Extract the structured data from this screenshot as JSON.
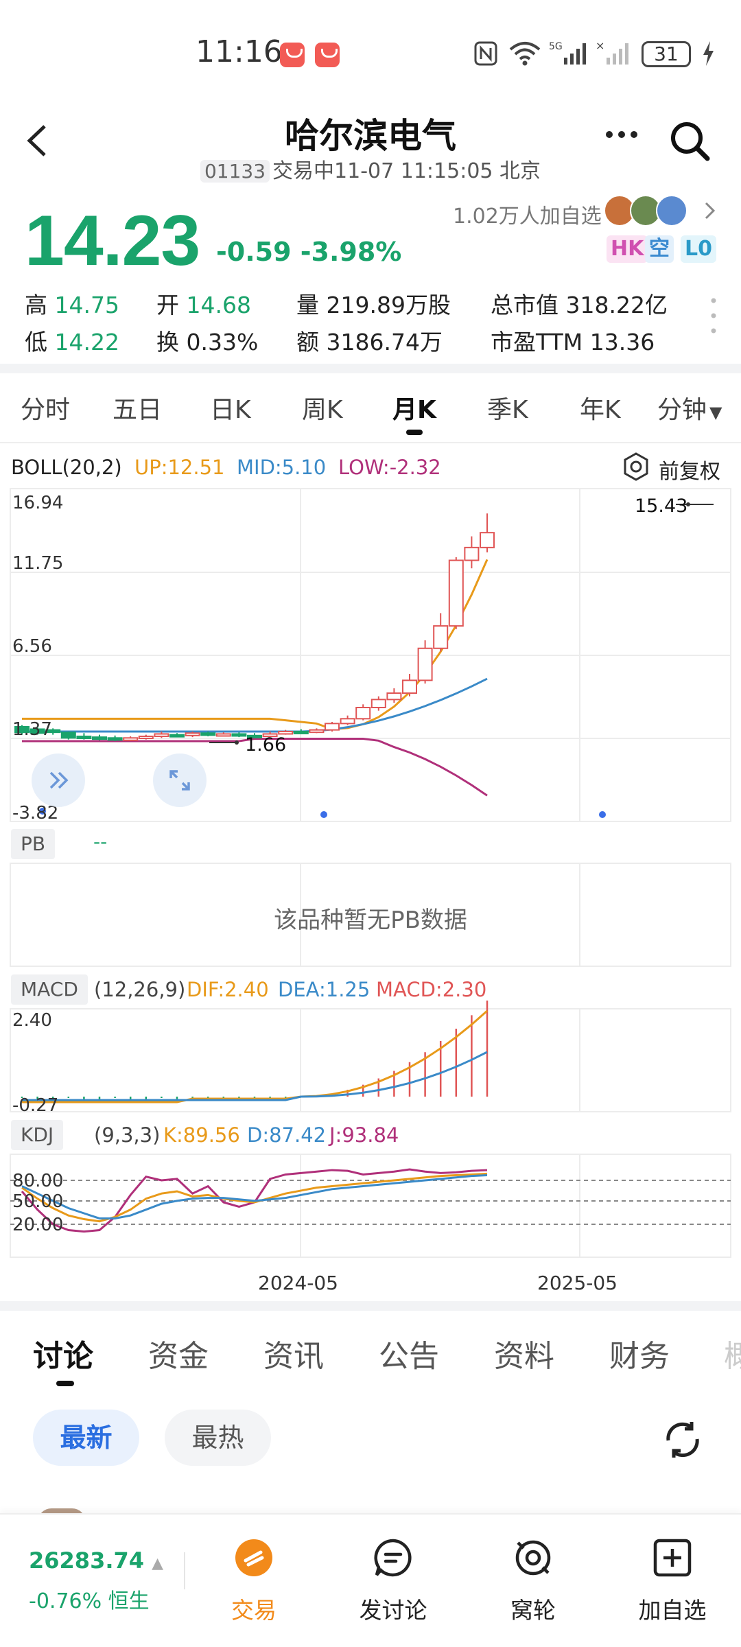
{
  "status_bar": {
    "time": "11:16",
    "battery": "31"
  },
  "header": {
    "title": "哈尔滨电气",
    "code": "01133",
    "status": "交易中11-07 11:15:05 北京"
  },
  "quote": {
    "price": "14.23",
    "change": "-0.59 -3.98%",
    "watchers": "1.02万人加自选",
    "tags": [
      "HK",
      "空",
      "L0"
    ],
    "high_label": "高",
    "high": "14.75",
    "open_label": "开",
    "open": "14.68",
    "volume_label": "量",
    "volume": "219.89万股",
    "mktcap_label": "总市值",
    "mktcap": "318.22亿",
    "low_label": "低",
    "low": "14.22",
    "turnover_label": "换",
    "turnover": "0.33%",
    "amount_label": "额",
    "amount": "3186.74万",
    "pe_label": "市盈TTM",
    "pe": "13.36"
  },
  "period_tabs": [
    "分时",
    "五日",
    "日K",
    "周K",
    "月K",
    "季K",
    "年K",
    "分钟"
  ],
  "main_chart": {
    "indicator": "BOLL(20,2)",
    "up": "UP:12.51",
    "mid": "MID:5.10",
    "low": "LOW:-2.32",
    "fuquan": "前复权",
    "y_labels": [
      "16.94",
      "11.75",
      "6.56",
      "1.37",
      "-3.82"
    ],
    "max_label": "15.43",
    "min_label": "1.66"
  },
  "pb": {
    "tag": "PB",
    "value": "--",
    "empty": "该品种暂无PB数据"
  },
  "macd": {
    "tag": "MACD",
    "params": "(12,26,9)",
    "dif": "DIF:2.40",
    "dea": "DEA:1.25",
    "macd": "MACD:2.30",
    "y_labels": [
      "2.40",
      "-0.27"
    ]
  },
  "kdj": {
    "tag": "KDJ",
    "params": "(9,3,3)",
    "k": "K:89.56",
    "d": "D:87.42",
    "j": "J:93.84",
    "y_labels": [
      "80.00",
      "50.00",
      "20.00"
    ]
  },
  "x_labels": [
    "2024-05",
    "2025-05"
  ],
  "discussion_tabs": [
    "讨论",
    "资金",
    "资讯",
    "公告",
    "资料",
    "财务",
    "概"
  ],
  "filters": {
    "latest": "最新",
    "hot": "最热"
  },
  "footer": {
    "index_value": "26283.74",
    "index_change": "-0.76% 恒生",
    "tabs": [
      "交易",
      "发讨论",
      "窝轮",
      "加自选"
    ]
  },
  "colors": {
    "green": "#1aa36b",
    "red": "#e05555",
    "orange": "#e89a1a",
    "blue": "#3a8ac8",
    "purple": "#b0307a"
  }
}
